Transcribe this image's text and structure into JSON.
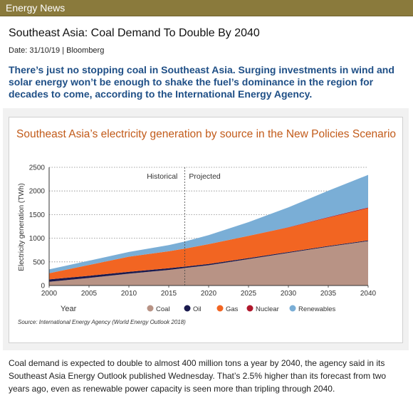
{
  "header": {
    "title": "Energy News"
  },
  "article": {
    "title": "Southeast Asia: Coal Demand To Double By 2040",
    "meta": "Date: 31/10/19 | Bloomberg",
    "lead": "There’s just no stopping coal in Southeast Asia. Surging investments in wind and solar energy won’t be enough to shake the fuel’s dominance in the region for decades to come, according to the International Energy Agency.",
    "body": "Coal demand is expected to double to almost 400 million tons a year by 2040, the agency said in its Southeast Asia Energy Outlook published Wednesday. That’s 2.5% higher than its forecast from two years ago, even as renewable power capacity is seen more than tripling through 2040."
  },
  "chart_data": {
    "type": "area",
    "stacked": true,
    "title": "Southeast Asia’s electricity generation by source in the New Policies Scenario",
    "xlabel": "Year",
    "ylabel": "Electricity generation (TWh)",
    "x": [
      2000,
      2005,
      2010,
      2015,
      2017,
      2020,
      2025,
      2030,
      2035,
      2040
    ],
    "xticks": [
      2000,
      2005,
      2010,
      2015,
      2020,
      2025,
      2030,
      2035,
      2040
    ],
    "yticks": [
      0,
      500,
      1000,
      1500,
      2000,
      2500
    ],
    "xlim": [
      2000,
      2040
    ],
    "ylim": [
      0,
      2500
    ],
    "series": [
      {
        "name": "Coal",
        "color": "#b89385",
        "values": [
          80,
          160,
          250,
          330,
          370,
          430,
          560,
          690,
          820,
          940
        ]
      },
      {
        "name": "Oil",
        "color": "#1a1a4e",
        "values": [
          50,
          45,
          40,
          35,
          30,
          25,
          20,
          18,
          15,
          15
        ]
      },
      {
        "name": "Gas",
        "color": "#f26522",
        "values": [
          130,
          230,
          320,
          360,
          380,
          420,
          470,
          520,
          600,
          680
        ]
      },
      {
        "name": "Nuclear",
        "color": "#b0182c",
        "values": [
          0,
          0,
          0,
          0,
          0,
          0,
          0,
          5,
          10,
          15
        ]
      },
      {
        "name": "Renewables",
        "color": "#7aaed6",
        "values": [
          80,
          90,
          100,
          130,
          150,
          190,
          290,
          420,
          560,
          690
        ]
      }
    ],
    "annotations": [
      "Historical",
      "Projected"
    ],
    "divider_x": 2017,
    "source": "Source: International Energy Agency (World Energy Outlook 2018)",
    "title_color": "#c25b1a",
    "grid": "horizontal dotted",
    "legend": "bottom"
  }
}
